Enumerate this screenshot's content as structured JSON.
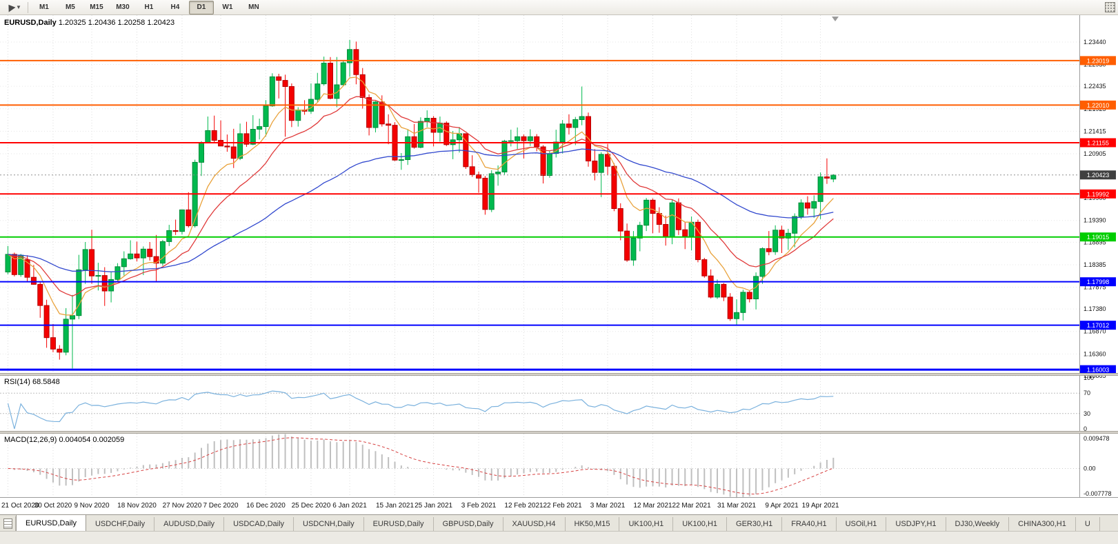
{
  "toolbar": {
    "timeframes": [
      {
        "label": "M1",
        "active": false
      },
      {
        "label": "M5",
        "active": false
      },
      {
        "label": "M15",
        "active": false
      },
      {
        "label": "M30",
        "active": false
      },
      {
        "label": "H1",
        "active": false
      },
      {
        "label": "H4",
        "active": false
      },
      {
        "label": "D1",
        "active": true
      },
      {
        "label": "W1",
        "active": false
      },
      {
        "label": "MN",
        "active": false
      }
    ]
  },
  "icons": {
    "dropdown_caret": "▼"
  },
  "panels": {
    "price_header_symbol": "EURUSD,Daily",
    "price_header_ohlc": "1.20325 1.20436 1.20258 1.20423",
    "rsi_label": "RSI(14) 68.5848",
    "macd_label": "MACD(12,26,9) 0.004054 0.002059"
  },
  "chart_data": {
    "type": "candlestick",
    "symbol": "EURUSD",
    "timeframe": "Daily",
    "ohlc_header": {
      "open": "1.20325",
      "high": "1.20436",
      "low": "1.20258",
      "close": "1.20423"
    },
    "price_range": [
      1.15927,
      1.2405
    ],
    "colors": {
      "bull": "#00B94E",
      "bull_border": "#008A38",
      "bear": "#F40000",
      "bear_border": "#B40000",
      "background": "#FFFFFF",
      "grid": "#DCDCDC"
    },
    "y_ticks": [
      "1.23440",
      "1.22930",
      "1.22435",
      "1.21925",
      "1.21415",
      "1.20905",
      "1.19900",
      "1.19390",
      "1.18895",
      "1.18385",
      "1.17875",
      "1.17380",
      "1.16870",
      "1.16360",
      "1.15865"
    ],
    "x_ticks": [
      {
        "label": "21 Oct 2020",
        "i": 0
      },
      {
        "label": "30 Oct 2020",
        "i": 7
      },
      {
        "label": "9 Nov 2020",
        "i": 13
      },
      {
        "label": "18 Nov 2020",
        "i": 20
      },
      {
        "label": "27 Nov 2020",
        "i": 27
      },
      {
        "label": "7 Dec 2020",
        "i": 33
      },
      {
        "label": "16 Dec 2020",
        "i": 40
      },
      {
        "label": "25 Dec 2020",
        "i": 47
      },
      {
        "label": "6 Jan 2021",
        "i": 53
      },
      {
        "label": "15 Jan 2021",
        "i": 60
      },
      {
        "label": "25 Jan 2021",
        "i": 66
      },
      {
        "label": "3 Feb 2021",
        "i": 73
      },
      {
        "label": "12 Feb 2021",
        "i": 80
      },
      {
        "label": "22 Feb 2021",
        "i": 86
      },
      {
        "label": "3 Mar 2021",
        "i": 93
      },
      {
        "label": "12 Mar 2021",
        "i": 100
      },
      {
        "label": "22 Mar 2021",
        "i": 106
      },
      {
        "label": "31 Mar 2021",
        "i": 113
      },
      {
        "label": "9 Apr 2021",
        "i": 120
      },
      {
        "label": "19 Apr 2021",
        "i": 126
      }
    ],
    "hlines": [
      {
        "value": 1.23019,
        "label": "1.23019",
        "color": "#FF5E00",
        "width": 2
      },
      {
        "value": 1.2201,
        "label": "1.22010",
        "color": "#FF5E00",
        "width": 2
      },
      {
        "value": 1.21155,
        "label": "1.21155",
        "color": "#FF0000",
        "width": 2
      },
      {
        "value": 1.19992,
        "label": "1.19992",
        "color": "#FF0000",
        "width": 2
      },
      {
        "value": 1.19015,
        "label": "1.19015",
        "color": "#00CD00",
        "width": 2
      },
      {
        "value": 1.17998,
        "label": "1.17998",
        "color": "#0000FF",
        "width": 2
      },
      {
        "value": 1.17012,
        "label": "1.17012",
        "color": "#0000FF",
        "width": 2
      },
      {
        "value": 1.16003,
        "label": "1.16003",
        "color": "#0000FF",
        "width": 3
      }
    ],
    "current_price": {
      "value": 1.20423,
      "label": "1.20423",
      "bg": "#404040"
    },
    "moving_averages": [
      {
        "name": "ma-fast",
        "period": 8,
        "color": "#E9A23B"
      },
      {
        "name": "ma-mid",
        "period": 17,
        "color": "#E03A3A"
      },
      {
        "name": "ma-slow",
        "period": 55,
        "color": "#3148CE"
      }
    ],
    "rsi": {
      "label": "RSI(14) 68.5848",
      "period": 14,
      "value": 68.5848,
      "levels": [
        100,
        70,
        30,
        0
      ],
      "guide_levels": [
        70,
        30
      ],
      "color": "#7AB1DD"
    },
    "macd": {
      "label": "MACD(12,26,9) 0.004054 0.002059",
      "fast": 12,
      "slow": 26,
      "signal_period": 9,
      "values_text": [
        "0.004054",
        "0.002059"
      ],
      "axis": [
        "0.009478",
        "0.00",
        "-0.007778"
      ],
      "range": [
        -0.007778,
        0.009478
      ],
      "histogram_color": "#BFBFBF",
      "signal_color": "#D64040"
    },
    "candles": [
      [
        1.1822,
        1.1881,
        1.1817,
        1.1862
      ],
      [
        1.1862,
        1.1866,
        1.1812,
        1.1816
      ],
      [
        1.1816,
        1.1863,
        1.1811,
        1.186
      ],
      [
        1.185,
        1.186,
        1.18,
        1.181
      ],
      [
        1.181,
        1.1838,
        1.1793,
        1.1794
      ],
      [
        1.1794,
        1.18,
        1.1718,
        1.1746
      ],
      [
        1.1746,
        1.1759,
        1.165,
        1.1673
      ],
      [
        1.1673,
        1.1704,
        1.164,
        1.1647
      ],
      [
        1.1647,
        1.1656,
        1.1623,
        1.164
      ],
      [
        1.164,
        1.174,
        1.1633,
        1.1715
      ],
      [
        1.1715,
        1.177,
        1.1603,
        1.1723
      ],
      [
        1.1723,
        1.1861,
        1.1715,
        1.1827
      ],
      [
        1.1827,
        1.189,
        1.1795,
        1.1873
      ],
      [
        1.1873,
        1.1918,
        1.1795,
        1.1813
      ],
      [
        1.1813,
        1.1843,
        1.178,
        1.1814
      ],
      [
        1.1814,
        1.1833,
        1.1745,
        1.1779
      ],
      [
        1.1779,
        1.1823,
        1.1753,
        1.1805
      ],
      [
        1.1805,
        1.1842,
        1.1799,
        1.1834
      ],
      [
        1.1834,
        1.1869,
        1.1814,
        1.1852
      ],
      [
        1.1852,
        1.1894,
        1.185,
        1.1863
      ],
      [
        1.1863,
        1.1891,
        1.1846,
        1.1854
      ],
      [
        1.1854,
        1.188,
        1.1815,
        1.1874
      ],
      [
        1.1874,
        1.189,
        1.1848,
        1.1857
      ],
      [
        1.1857,
        1.1906,
        1.18,
        1.1842
      ],
      [
        1.1842,
        1.1895,
        1.1836,
        1.1891
      ],
      [
        1.1891,
        1.1929,
        1.1881,
        1.1916
      ],
      [
        1.1916,
        1.1941,
        1.1906,
        1.1914
      ],
      [
        1.1914,
        1.1964,
        1.1907,
        1.1963
      ],
      [
        1.1963,
        1.2003,
        1.1923,
        1.1927
      ],
      [
        1.1927,
        1.2077,
        1.1923,
        1.2071
      ],
      [
        1.2071,
        1.2119,
        1.204,
        1.2115
      ],
      [
        1.2115,
        1.2175,
        1.2114,
        1.2143
      ],
      [
        1.2143,
        1.2177,
        1.2117,
        1.2121
      ],
      [
        1.2121,
        1.2166,
        1.2109,
        1.2108
      ],
      [
        1.2108,
        1.2134,
        1.2095,
        1.2106
      ],
      [
        1.2106,
        1.2147,
        1.2058,
        1.208
      ],
      [
        1.208,
        1.2159,
        1.2076,
        1.2136
      ],
      [
        1.2136,
        1.2163,
        1.2106,
        1.2112
      ],
      [
        1.2112,
        1.2178,
        1.211,
        1.2146
      ],
      [
        1.2146,
        1.217,
        1.2123,
        1.2152
      ],
      [
        1.2152,
        1.2212,
        1.213,
        1.2199
      ],
      [
        1.2199,
        1.2273,
        1.2197,
        1.2265
      ],
      [
        1.2265,
        1.2272,
        1.2216,
        1.2257
      ],
      [
        1.2257,
        1.227,
        1.2129,
        1.2243
      ],
      [
        1.2243,
        1.225,
        1.2151,
        1.2166
      ],
      [
        1.2166,
        1.2196,
        1.2152,
        1.219
      ],
      [
        1.219,
        1.2212,
        1.2179,
        1.2187
      ],
      [
        1.2187,
        1.225,
        1.2181,
        1.2214
      ],
      [
        1.2214,
        1.2274,
        1.2208,
        1.2249
      ],
      [
        1.2249,
        1.2311,
        1.2245,
        1.2296
      ],
      [
        1.2296,
        1.231,
        1.2214,
        1.2216
      ],
      [
        1.2216,
        1.231,
        1.2196,
        1.2247
      ],
      [
        1.2247,
        1.2303,
        1.2245,
        1.2297
      ],
      [
        1.2297,
        1.2349,
        1.2265,
        1.2327
      ],
      [
        1.2327,
        1.2345,
        1.2248,
        1.227
      ],
      [
        1.227,
        1.2285,
        1.2193,
        1.2218
      ],
      [
        1.2218,
        1.2225,
        1.2132,
        1.215
      ],
      [
        1.215,
        1.221,
        1.2139,
        1.2208
      ],
      [
        1.2208,
        1.2223,
        1.2152,
        1.2158
      ],
      [
        1.2158,
        1.218,
        1.2112,
        1.2155
      ],
      [
        1.2155,
        1.2162,
        1.2074,
        1.2076
      ],
      [
        1.2076,
        1.2092,
        1.2054,
        1.2077
      ],
      [
        1.2077,
        1.2145,
        1.2065,
        1.2129
      ],
      [
        1.2129,
        1.2158,
        1.2102,
        1.2105
      ],
      [
        1.2105,
        1.2173,
        1.2103,
        1.2164
      ],
      [
        1.2164,
        1.2189,
        1.2151,
        1.2171
      ],
      [
        1.2171,
        1.2176,
        1.2107,
        1.2139
      ],
      [
        1.2139,
        1.2175,
        1.2118,
        1.216
      ],
      [
        1.216,
        1.2164,
        1.2108,
        1.2111
      ],
      [
        1.2111,
        1.2142,
        1.2078,
        1.2122
      ],
      [
        1.2122,
        1.2151,
        1.2093,
        1.2136
      ],
      [
        1.2136,
        1.2136,
        1.2056,
        1.2061
      ],
      [
        1.2061,
        1.2087,
        1.2038,
        1.2043
      ],
      [
        1.2043,
        1.205,
        1.2002,
        1.2035
      ],
      [
        1.2035,
        1.204,
        1.1952,
        1.1964
      ],
      [
        1.1964,
        1.2053,
        1.1958,
        1.2045
      ],
      [
        1.2045,
        1.2064,
        1.2018,
        1.2049
      ],
      [
        1.2049,
        1.2122,
        1.2043,
        1.2119
      ],
      [
        1.2119,
        1.2145,
        1.2107,
        1.212
      ],
      [
        1.212,
        1.215,
        1.2101,
        1.2129
      ],
      [
        1.2129,
        1.2134,
        1.208,
        1.212
      ],
      [
        1.212,
        1.2146,
        1.2108,
        1.2129
      ],
      [
        1.2129,
        1.2135,
        1.2096,
        1.2106
      ],
      [
        1.2106,
        1.211,
        1.2023,
        1.2041
      ],
      [
        1.2041,
        1.2097,
        1.2036,
        1.2091
      ],
      [
        1.2091,
        1.2145,
        1.2082,
        1.2117
      ],
      [
        1.2117,
        1.2167,
        1.2091,
        1.2158
      ],
      [
        1.2158,
        1.218,
        1.2134,
        1.215
      ],
      [
        1.215,
        1.2174,
        1.211,
        1.2168
      ],
      [
        1.2168,
        1.2243,
        1.2155,
        1.2175
      ],
      [
        1.2175,
        1.2184,
        1.2061,
        1.2074
      ],
      [
        1.2074,
        1.2101,
        1.203,
        1.2048
      ],
      [
        1.2048,
        1.2094,
        1.1992,
        1.2089
      ],
      [
        1.2089,
        1.2113,
        1.2043,
        1.2062
      ],
      [
        1.2062,
        1.2069,
        1.196,
        1.1966
      ],
      [
        1.1966,
        1.1978,
        1.1894,
        1.1915
      ],
      [
        1.1915,
        1.1932,
        1.1845,
        1.1849
      ],
      [
        1.1849,
        1.1915,
        1.1836,
        1.1899
      ],
      [
        1.1899,
        1.1936,
        1.1869,
        1.1928
      ],
      [
        1.1928,
        1.199,
        1.1915,
        1.1985
      ],
      [
        1.1985,
        1.1989,
        1.191,
        1.1955
      ],
      [
        1.1955,
        1.1969,
        1.1911,
        1.193
      ],
      [
        1.193,
        1.195,
        1.1882,
        1.1901
      ],
      [
        1.1901,
        1.1986,
        1.1885,
        1.1979
      ],
      [
        1.1979,
        1.1989,
        1.1906,
        1.1918
      ],
      [
        1.1918,
        1.1936,
        1.1874,
        1.1903
      ],
      [
        1.1903,
        1.1948,
        1.1871,
        1.1935
      ],
      [
        1.1935,
        1.1941,
        1.1844,
        1.185
      ],
      [
        1.185,
        1.1854,
        1.1809,
        1.1813
      ],
      [
        1.1813,
        1.1828,
        1.1762,
        1.1765
      ],
      [
        1.1765,
        1.1805,
        1.1761,
        1.1794
      ],
      [
        1.1794,
        1.1797,
        1.1756,
        1.1765
      ],
      [
        1.1765,
        1.1774,
        1.1711,
        1.1716
      ],
      [
        1.1716,
        1.176,
        1.1702,
        1.173
      ],
      [
        1.173,
        1.1782,
        1.1712,
        1.1776
      ],
      [
        1.1776,
        1.178,
        1.1753,
        1.1761
      ],
      [
        1.1761,
        1.1821,
        1.1737,
        1.1812
      ],
      [
        1.1812,
        1.1878,
        1.1795,
        1.1875
      ],
      [
        1.1875,
        1.1915,
        1.186,
        1.1868
      ],
      [
        1.1868,
        1.1928,
        1.1861,
        1.1917
      ],
      [
        1.1917,
        1.1927,
        1.1865,
        1.1899
      ],
      [
        1.1899,
        1.192,
        1.1872,
        1.191
      ],
      [
        1.191,
        1.1955,
        1.1878,
        1.1948
      ],
      [
        1.1948,
        1.1987,
        1.1942,
        1.1979
      ],
      [
        1.1979,
        1.1994,
        1.1952,
        1.1967
      ],
      [
        1.1967,
        1.1996,
        1.1945,
        1.1982
      ],
      [
        1.1982,
        1.2048,
        1.1942,
        1.2038
      ],
      [
        1.2038,
        1.208,
        1.2022,
        1.2035
      ],
      [
        1.2033,
        1.2044,
        1.2026,
        1.2042
      ]
    ]
  },
  "tabs": [
    {
      "label": "EURUSD,Daily",
      "active": true
    },
    {
      "label": "USDCHF,Daily",
      "active": false
    },
    {
      "label": "AUDUSD,Daily",
      "active": false
    },
    {
      "label": "USDCAD,Daily",
      "active": false
    },
    {
      "label": "USDCNH,Daily",
      "active": false
    },
    {
      "label": "EURUSD,Daily",
      "active": false
    },
    {
      "label": "GBPUSD,Daily",
      "active": false
    },
    {
      "label": "XAUUSD,H4",
      "active": false
    },
    {
      "label": "HK50,M15",
      "active": false
    },
    {
      "label": "UK100,H1",
      "active": false
    },
    {
      "label": "UK100,H1",
      "active": false
    },
    {
      "label": "GER30,H1",
      "active": false
    },
    {
      "label": "FRA40,H1",
      "active": false
    },
    {
      "label": "USOil,H1",
      "active": false
    },
    {
      "label": "USDJPY,H1",
      "active": false
    },
    {
      "label": "DJ30,Weekly",
      "active": false
    },
    {
      "label": "CHINA300,H1",
      "active": false
    },
    {
      "label": "U",
      "active": false
    }
  ]
}
